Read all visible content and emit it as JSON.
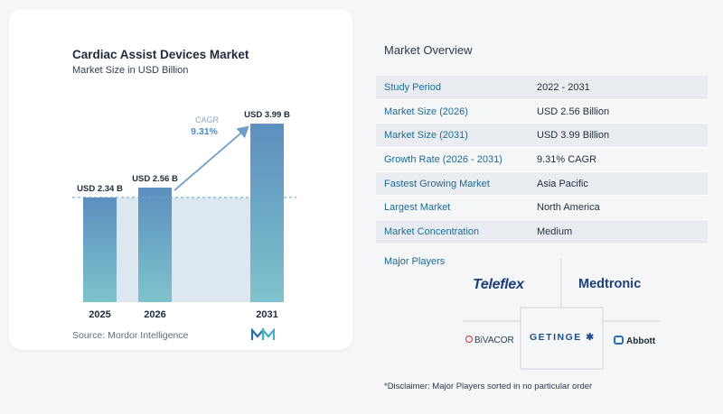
{
  "chart_data": {
    "type": "bar",
    "title": "Cardiac Assist Devices Market",
    "subtitle": "Market Size in USD Billion",
    "categories": [
      "2025",
      "2026",
      "2031"
    ],
    "values": [
      2.34,
      2.56,
      3.99
    ],
    "data_labels": [
      "USD 2.34 B",
      "USD 2.56 B",
      "USD 3.99 B"
    ],
    "cagr_label": "CAGR",
    "cagr_value": "9.31%",
    "source": "Source:  Mordor Intelligence",
    "colors": {
      "bar_top": "#5b8fbf",
      "bar_bottom": "#7fc3cc",
      "band": "#dde7ef",
      "arrow": "#6f9fc8",
      "dashed": "#6f9fc8"
    }
  },
  "overview": {
    "title": "Market Overview",
    "rows": [
      {
        "label": "Study Period",
        "value": "2022 - 2031"
      },
      {
        "label": "Market Size (2026)",
        "value": "USD 2.56 Billion"
      },
      {
        "label": "Market Size (2031)",
        "value": "USD 3.99 Billion"
      },
      {
        "label": "Growth Rate (2026 - 2031)",
        "value": "9.31% CAGR"
      },
      {
        "label": "Fastest Growing Market",
        "value": "Asia Pacific"
      },
      {
        "label": "Largest Market",
        "value": "North America"
      },
      {
        "label": "Market Concentration",
        "value": "Medium"
      }
    ]
  },
  "players": {
    "title": "Major Players",
    "teleflex": "Teleflex",
    "medtronic": "Medtronic",
    "bivacor": "BiVACOR",
    "getinge": "GETINGE",
    "abbott": "Abbott"
  },
  "disclaimer": "*Disclaimer: Major Players sorted in no particular order"
}
